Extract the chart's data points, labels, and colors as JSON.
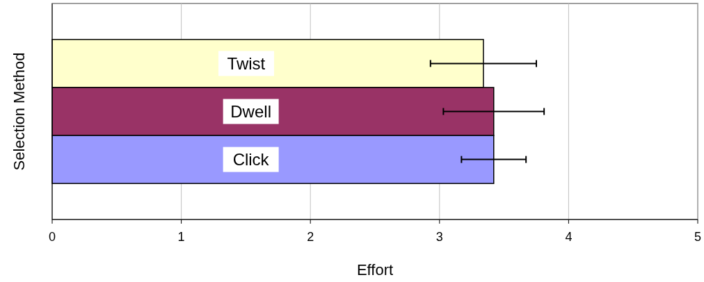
{
  "chart_data": {
    "type": "bar",
    "orientation": "horizontal",
    "xlabel": "Effort",
    "ylabel": "Selection Method",
    "categories": [
      "Twist",
      "Dwell",
      "Click"
    ],
    "values": [
      3.34,
      3.42,
      3.42
    ],
    "colors": [
      "#ffffcc",
      "#993366",
      "#9999ff"
    ],
    "errors": [
      0.41,
      0.39,
      0.25
    ],
    "xlim": [
      0,
      5
    ],
    "xticks": [
      0,
      1,
      2,
      3,
      4,
      5
    ],
    "grid": "x",
    "tick_labels": "x"
  }
}
